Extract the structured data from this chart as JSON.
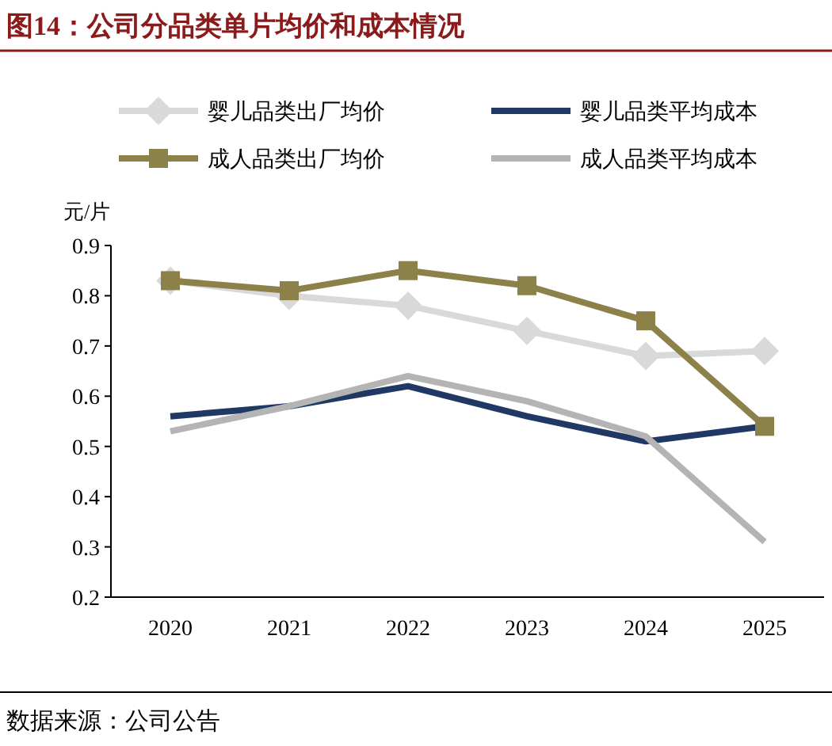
{
  "chart_data": {
    "type": "line",
    "title": "图14：公司分品类单片均价和成本情况",
    "ylabel": "元/片",
    "categories": [
      "2020",
      "2021",
      "2022",
      "2023",
      "2024",
      "2025"
    ],
    "series": [
      {
        "name": "婴儿品类出厂均价",
        "color": "#d9d9d9",
        "marker": "diamond",
        "values": [
          0.83,
          0.8,
          0.78,
          0.73,
          0.68,
          0.69
        ]
      },
      {
        "name": "婴儿品类平均成本",
        "color": "#1f3864",
        "marker": "none",
        "values": [
          0.56,
          0.58,
          0.62,
          0.56,
          0.51,
          0.54
        ]
      },
      {
        "name": "成人品类出厂均价",
        "color": "#8c8148",
        "marker": "square",
        "values": [
          0.83,
          0.81,
          0.85,
          0.82,
          0.75,
          0.54
        ]
      },
      {
        "name": "成人品类平均成本",
        "color": "#b4b4b4",
        "marker": "none",
        "values": [
          0.53,
          0.58,
          0.64,
          0.59,
          0.52,
          0.31
        ]
      }
    ],
    "ylim": [
      0.2,
      0.9
    ],
    "yticks": [
      0.2,
      0.3,
      0.4,
      0.5,
      0.6,
      0.7,
      0.8,
      0.9
    ],
    "grid": false,
    "legend": "top",
    "annotations": [
      "数据来源：公司公告"
    ]
  }
}
